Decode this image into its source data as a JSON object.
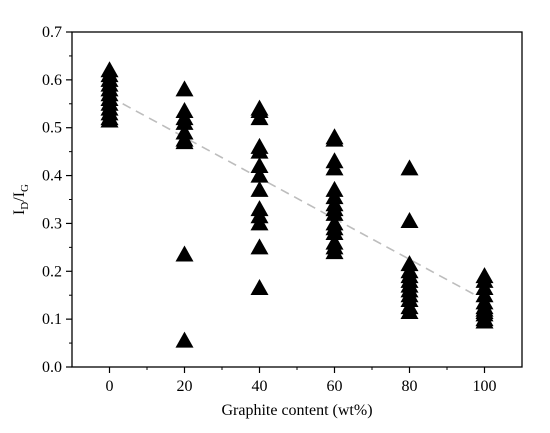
{
  "chart_data": {
    "type": "scatter",
    "xlabel": "Graphite content (wt%)",
    "ylabel": {
      "main": "I",
      "sub1": "D",
      "sep": "/I",
      "sub2": "G"
    },
    "xlim": [
      -10,
      110
    ],
    "ylim": [
      0.0,
      0.7
    ],
    "x_ticks": [
      0,
      20,
      40,
      60,
      80,
      100
    ],
    "y_ticks": [
      0.0,
      0.1,
      0.2,
      0.3,
      0.4,
      0.5,
      0.6,
      0.7
    ],
    "y_tick_labels": [
      "0.0",
      "0.1",
      "0.2",
      "0.3",
      "0.4",
      "0.5",
      "0.6",
      "0.7"
    ],
    "marker": "filled-triangle",
    "marker_color": "#000000",
    "trend_color": "#bdbdbd",
    "trend_line": {
      "x": [
        0,
        100
      ],
      "y": [
        0.565,
        0.14
      ]
    },
    "series": [
      {
        "x": [
          0,
          0,
          0,
          0,
          0,
          0,
          0,
          0,
          0,
          0,
          0,
          0,
          20,
          20,
          20,
          20,
          20,
          20,
          20,
          20,
          20,
          40,
          40,
          40,
          40,
          40,
          40,
          40,
          40,
          40,
          40,
          40,
          40,
          40,
          60,
          60,
          60,
          60,
          60,
          60,
          60,
          60,
          60,
          60,
          60,
          60,
          60,
          60,
          60,
          80,
          80,
          80,
          80,
          80,
          80,
          80,
          80,
          80,
          80,
          80,
          80,
          100,
          100,
          100,
          100,
          100,
          100,
          100,
          100,
          100,
          100,
          100
        ],
        "y": [
          0.62,
          0.61,
          0.6,
          0.59,
          0.58,
          0.57,
          0.56,
          0.55,
          0.54,
          0.53,
          0.52,
          0.515,
          0.58,
          0.535,
          0.52,
          0.51,
          0.49,
          0.475,
          0.47,
          0.235,
          0.055,
          0.54,
          0.535,
          0.52,
          0.46,
          0.45,
          0.42,
          0.4,
          0.37,
          0.33,
          0.315,
          0.3,
          0.25,
          0.165,
          0.48,
          0.475,
          0.43,
          0.415,
          0.37,
          0.355,
          0.34,
          0.33,
          0.32,
          0.3,
          0.29,
          0.28,
          0.26,
          0.25,
          0.24,
          0.415,
          0.305,
          0.215,
          0.2,
          0.19,
          0.18,
          0.17,
          0.16,
          0.15,
          0.14,
          0.125,
          0.115,
          0.19,
          0.18,
          0.165,
          0.15,
          0.135,
          0.125,
          0.12,
          0.115,
          0.11,
          0.1,
          0.095
        ]
      }
    ]
  }
}
